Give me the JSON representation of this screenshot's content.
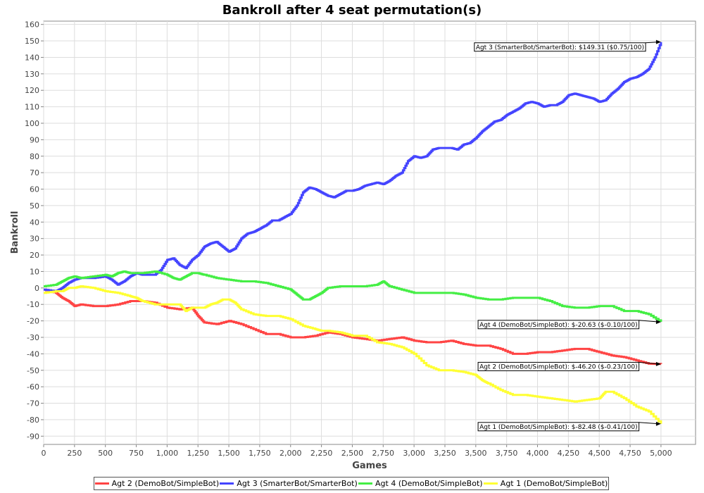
{
  "chart_data": {
    "type": "line",
    "title": "Bankroll after 4 seat permutation(s)",
    "xlabel": "Games",
    "ylabel": "Bankroll",
    "xlim": [
      0,
      5280
    ],
    "ylim": [
      -95,
      162
    ],
    "grid": true,
    "legend_position": "bottom",
    "x_ticks": [
      0,
      250,
      500,
      750,
      1000,
      1250,
      1500,
      1750,
      2000,
      2250,
      2500,
      2750,
      3000,
      3250,
      3500,
      3750,
      4000,
      4250,
      4500,
      4750,
      5000
    ],
    "x_tick_labels": [
      "0",
      "250",
      "500",
      "750",
      "1,000",
      "1,250",
      "1,500",
      "1,750",
      "2,000",
      "2,250",
      "2,500",
      "2,750",
      "3,000",
      "3,250",
      "3,500",
      "3,750",
      "4,000",
      "4,250",
      "4,500",
      "4,750",
      "5,000"
    ],
    "y_ticks": [
      -90,
      -80,
      -70,
      -60,
      -50,
      -40,
      -30,
      -20,
      -10,
      0,
      10,
      20,
      30,
      40,
      50,
      60,
      70,
      80,
      90,
      100,
      110,
      120,
      130,
      140,
      150,
      160
    ],
    "y_tick_labels": [
      "-90",
      "-80",
      "-70",
      "-60",
      "-50",
      "-40",
      "-30",
      "-20",
      "-10",
      "0",
      "10",
      "20",
      "30",
      "40",
      "50",
      "60",
      "70",
      "80",
      "90",
      "100",
      "110",
      "120",
      "130",
      "140",
      "150",
      "160"
    ],
    "series": [
      {
        "name": "Agt 2 (DemoBot/SimpleBot)",
        "color": "#ff4444",
        "x": [
          0,
          100,
          150,
          200,
          250,
          300,
          400,
          500,
          600,
          700,
          800,
          900,
          1000,
          1100,
          1200,
          1250,
          1300,
          1400,
          1500,
          1600,
          1700,
          1800,
          1900,
          2000,
          2100,
          2200,
          2300,
          2400,
          2500,
          2600,
          2700,
          2800,
          2900,
          3000,
          3100,
          3200,
          3300,
          3400,
          3500,
          3600,
          3700,
          3800,
          3900,
          4000,
          4100,
          4200,
          4300,
          4400,
          4500,
          4600,
          4700,
          4800,
          4900,
          5000
        ],
        "y": [
          -1,
          -3,
          -6,
          -8,
          -11,
          -10,
          -11,
          -11,
          -10,
          -8,
          -8,
          -9,
          -12,
          -13,
          -12,
          -17,
          -21,
          -22,
          -20,
          -22,
          -25,
          -28,
          -28,
          -30,
          -30,
          -29,
          -27,
          -28,
          -30,
          -31,
          -32,
          -31,
          -30,
          -32,
          -33,
          -33,
          -32,
          -34,
          -35,
          -35,
          -37,
          -40,
          -40,
          -39,
          -39,
          -38,
          -37,
          -37,
          -39,
          -41,
          -42,
          -44,
          -46,
          -46.2
        ]
      },
      {
        "name": "Agt 3 (SmarterBot/SmarterBot)",
        "color": "#4444ff",
        "x": [
          0,
          100,
          150,
          200,
          250,
          300,
          400,
          500,
          550,
          600,
          650,
          700,
          750,
          800,
          900,
          950,
          1000,
          1050,
          1100,
          1150,
          1200,
          1250,
          1300,
          1350,
          1400,
          1450,
          1500,
          1550,
          1600,
          1650,
          1700,
          1750,
          1800,
          1850,
          1900,
          1950,
          2000,
          2050,
          2100,
          2150,
          2200,
          2250,
          2300,
          2350,
          2400,
          2450,
          2500,
          2550,
          2600,
          2650,
          2700,
          2750,
          2800,
          2850,
          2900,
          2950,
          3000,
          3050,
          3100,
          3150,
          3200,
          3250,
          3300,
          3350,
          3400,
          3450,
          3500,
          3550,
          3600,
          3650,
          3700,
          3750,
          3800,
          3850,
          3900,
          3950,
          4000,
          4050,
          4100,
          4150,
          4200,
          4250,
          4300,
          4350,
          4400,
          4450,
          4500,
          4550,
          4600,
          4650,
          4700,
          4750,
          4800,
          4850,
          4900,
          4950,
          5000
        ],
        "y": [
          -1,
          -2,
          0,
          3,
          5,
          6,
          6,
          7,
          5,
          2,
          4,
          7,
          9,
          8,
          8,
          11,
          17,
          18,
          14,
          12,
          17,
          20,
          25,
          27,
          28,
          25,
          22,
          24,
          30,
          33,
          34,
          36,
          38,
          41,
          41,
          43,
          45,
          50,
          58,
          61,
          60,
          58,
          56,
          55,
          57,
          59,
          59,
          60,
          62,
          63,
          64,
          63,
          65,
          68,
          70,
          77,
          80,
          79,
          80,
          84,
          85,
          85,
          85,
          84,
          87,
          88,
          91,
          95,
          98,
          101,
          102,
          105,
          107,
          109,
          112,
          113,
          112,
          110,
          111,
          111,
          113,
          117,
          118,
          117,
          116,
          115,
          113,
          114,
          118,
          121,
          125,
          127,
          128,
          130,
          133,
          140,
          149.31
        ]
      },
      {
        "name": "Agt 4 (DemoBot/SimpleBot)",
        "color": "#44ee44",
        "x": [
          0,
          100,
          150,
          200,
          250,
          300,
          400,
          500,
          550,
          600,
          650,
          700,
          800,
          900,
          1000,
          1050,
          1100,
          1150,
          1200,
          1250,
          1300,
          1400,
          1500,
          1600,
          1700,
          1800,
          1900,
          2000,
          2050,
          2100,
          2150,
          2200,
          2250,
          2300,
          2400,
          2500,
          2600,
          2700,
          2750,
          2800,
          2900,
          3000,
          3100,
          3200,
          3300,
          3400,
          3500,
          3600,
          3700,
          3800,
          3900,
          4000,
          4100,
          4200,
          4300,
          4400,
          4500,
          4600,
          4700,
          4800,
          4900,
          5000
        ],
        "y": [
          1,
          2,
          4,
          6,
          7,
          6,
          7,
          8,
          7,
          9,
          10,
          9,
          9,
          10,
          8,
          6,
          5,
          7,
          9,
          9,
          8,
          6,
          5,
          4,
          4,
          3,
          1,
          -1,
          -4,
          -7,
          -7,
          -5,
          -3,
          0,
          1,
          1,
          1,
          2,
          4,
          1,
          -1,
          -3,
          -3,
          -3,
          -3,
          -4,
          -6,
          -7,
          -7,
          -6,
          -6,
          -6,
          -8,
          -11,
          -12,
          -12,
          -11,
          -11,
          -14,
          -14,
          -16,
          -20.63
        ]
      },
      {
        "name": "Agt 1 (DemoBot/SimpleBot)",
        "color": "#ffff33",
        "x": [
          0,
          100,
          150,
          200,
          250,
          300,
          400,
          500,
          600,
          700,
          750,
          800,
          900,
          1000,
          1100,
          1150,
          1200,
          1250,
          1300,
          1350,
          1400,
          1450,
          1500,
          1550,
          1600,
          1700,
          1800,
          1900,
          2000,
          2100,
          2200,
          2250,
          2300,
          2400,
          2500,
          2600,
          2700,
          2800,
          2900,
          3000,
          3100,
          3200,
          3300,
          3400,
          3500,
          3550,
          3600,
          3700,
          3800,
          3900,
          4000,
          4100,
          4200,
          4300,
          4400,
          4500,
          4550,
          4600,
          4700,
          4800,
          4900,
          5000
        ],
        "y": [
          -3,
          -2,
          -2,
          0,
          0,
          1,
          0,
          -2,
          -3,
          -5,
          -6,
          -8,
          -10,
          -10,
          -10,
          -14,
          -12,
          -12,
          -12,
          -10,
          -9,
          -7,
          -7,
          -9,
          -13,
          -16,
          -17,
          -17,
          -19,
          -23,
          -25,
          -26,
          -26,
          -27,
          -29,
          -29,
          -33,
          -34,
          -36,
          -40,
          -47,
          -50,
          -50,
          -51,
          -53,
          -56,
          -58,
          -62,
          -65,
          -65,
          -66,
          -67,
          -68,
          -69,
          -68,
          -67,
          -63,
          -63,
          -67,
          -72,
          -75,
          -82.48
        ]
      }
    ],
    "annotations": [
      {
        "text": "Agt 3 (SmarterBot/SmarterBot): $149.31 ($0.75/100)",
        "series": 1,
        "box_x": 3500,
        "box_y": 145,
        "align": "end"
      },
      {
        "text": "Agt 4 (DemoBot/SimpleBot): $-20.63 ($-0.10/100)",
        "series": 2,
        "box_x": 3530,
        "box_y": -23.5,
        "align": "end"
      },
      {
        "text": "Agt 2 (DemoBot/SimpleBot): $-46.20 ($-0.23/100)",
        "series": 0,
        "box_x": 3530,
        "box_y": -49,
        "align": "end"
      },
      {
        "text": "Agt 1 (DemoBot/SimpleBot): $-82.48 ($-0.41/100)",
        "series": 3,
        "box_x": 3530,
        "box_y": -85.5,
        "align": "end"
      }
    ]
  }
}
